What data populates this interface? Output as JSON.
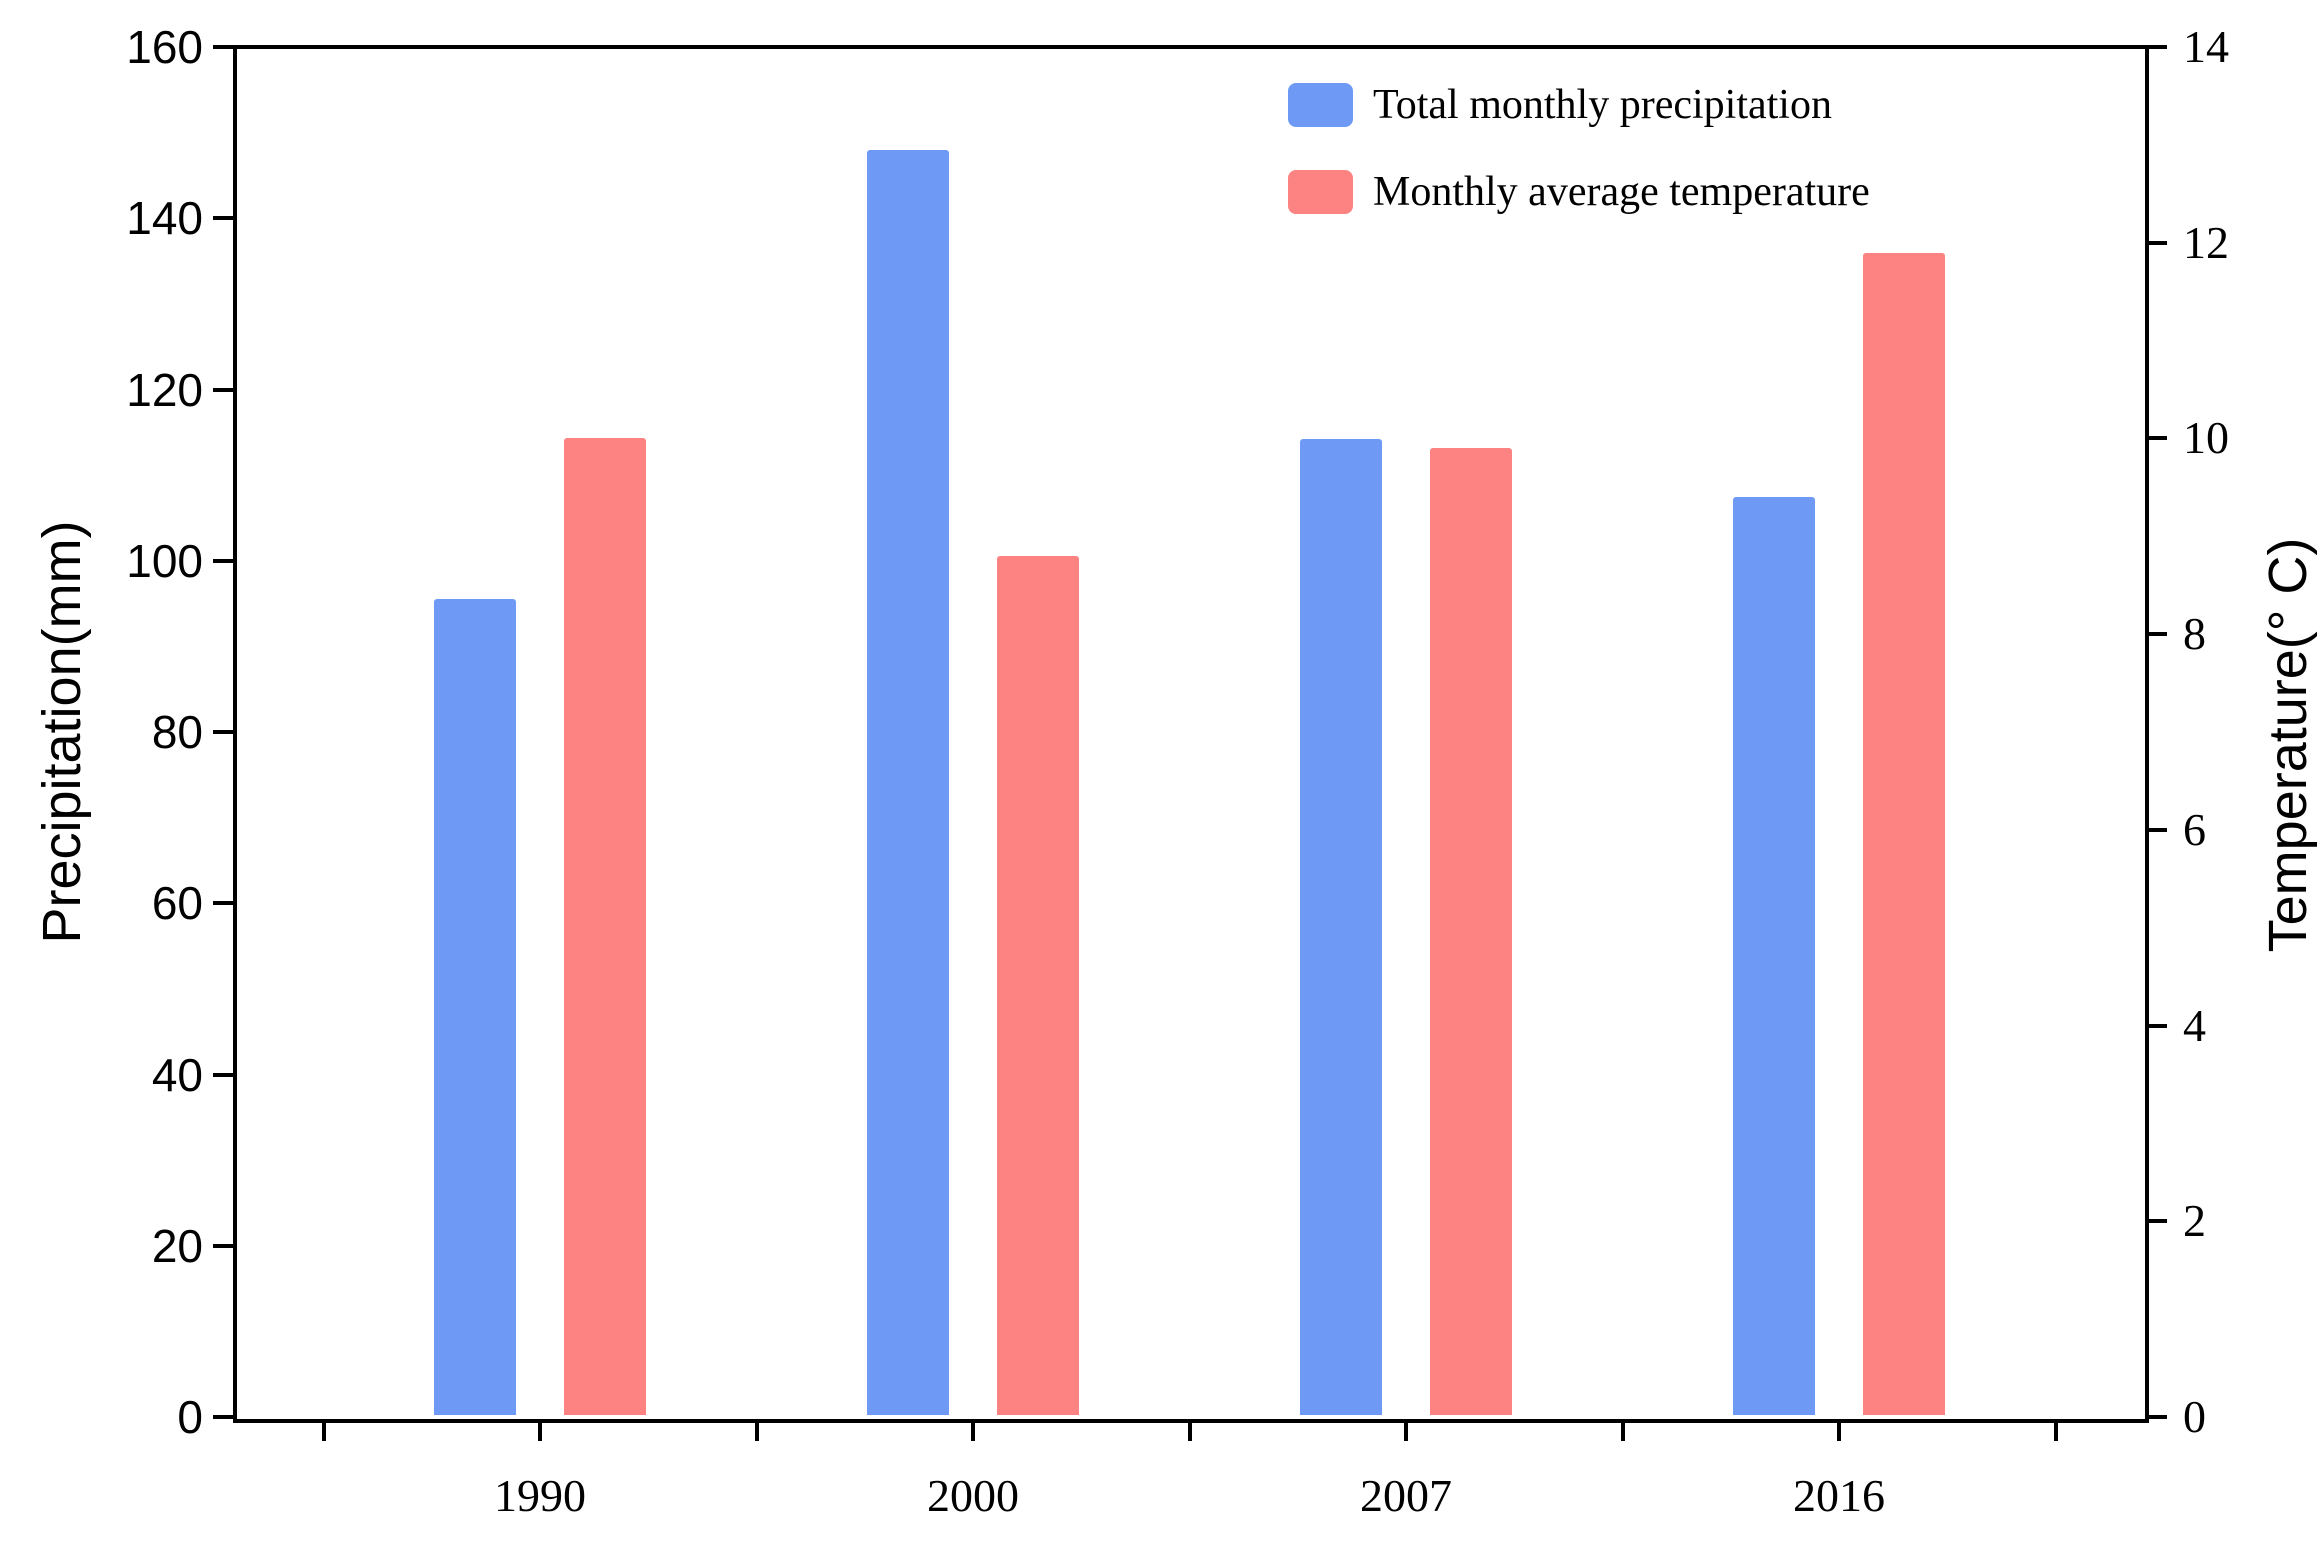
{
  "chart_data": {
    "type": "bar",
    "categories": [
      "1990",
      "2000",
      "2007",
      "2016"
    ],
    "series": [
      {
        "name": "Total monthly precipitation",
        "axis": "left",
        "color": "#6E9AF6",
        "values": [
          95.5,
          148.0,
          114.2,
          107.5
        ]
      },
      {
        "name": "Monthly average temperature",
        "axis": "right",
        "color": "#FC8381",
        "values": [
          10.0,
          8.8,
          9.9,
          11.9
        ]
      }
    ],
    "left_axis": {
      "label": "Precipitation(mm)",
      "lim": [
        0,
        160
      ],
      "tick_step": 20
    },
    "right_axis": {
      "label": "Temperature(° C)",
      "lim": [
        0,
        14
      ],
      "tick_step": 2
    },
    "x_axis": {
      "minor_ticks_at_midpoints": true
    },
    "legend": {
      "position": "top-right-inside",
      "entries": [
        "Total monthly precipitation",
        "Monthly average temperature"
      ]
    },
    "grid": false,
    "background_color": "#FFFFFF",
    "frame_color": "#000000"
  }
}
